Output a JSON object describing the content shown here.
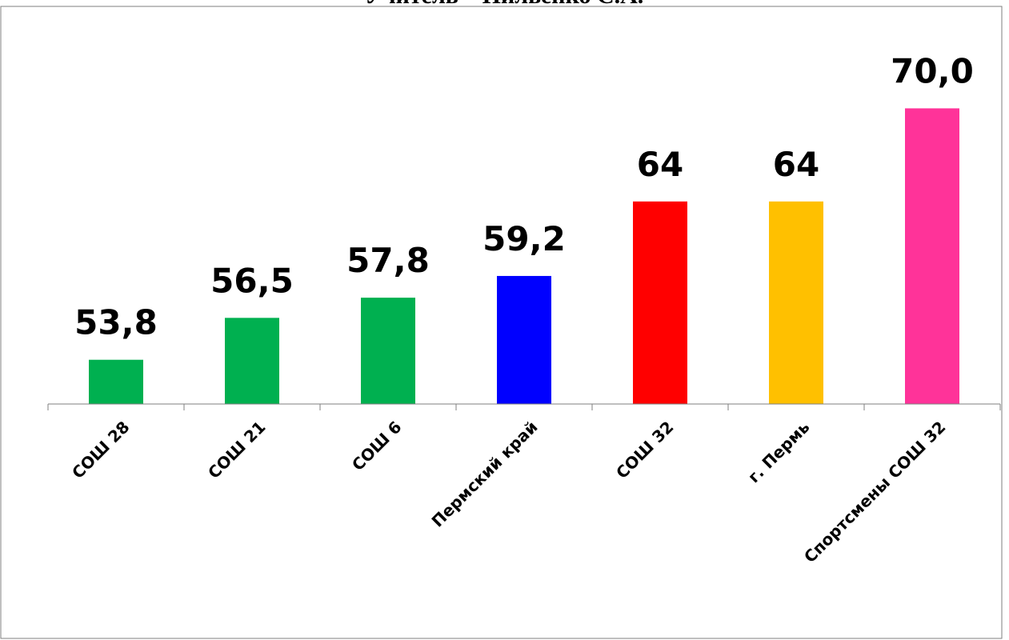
{
  "chart_data": {
    "type": "bar",
    "title": "Учитель – Пильенко С.А.",
    "categories": [
      "СОШ 28",
      "СОШ 21",
      "СОШ 6",
      "Пермский край",
      "СОШ 32",
      "г. Пермь",
      "Спортсмены СОШ 32"
    ],
    "values": [
      53.8,
      56.5,
      57.8,
      59.2,
      64,
      64,
      70.0
    ],
    "value_labels": [
      "53,8",
      "56,5",
      "57,8",
      "59,2",
      "64",
      "64",
      "70,0"
    ],
    "colors": [
      "#00b050",
      "#00b050",
      "#00b050",
      "#0000ff",
      "#ff0000",
      "#ffc000",
      "#ff3399"
    ],
    "xlabel": "",
    "ylabel": "",
    "grid": false,
    "legend": "none"
  }
}
